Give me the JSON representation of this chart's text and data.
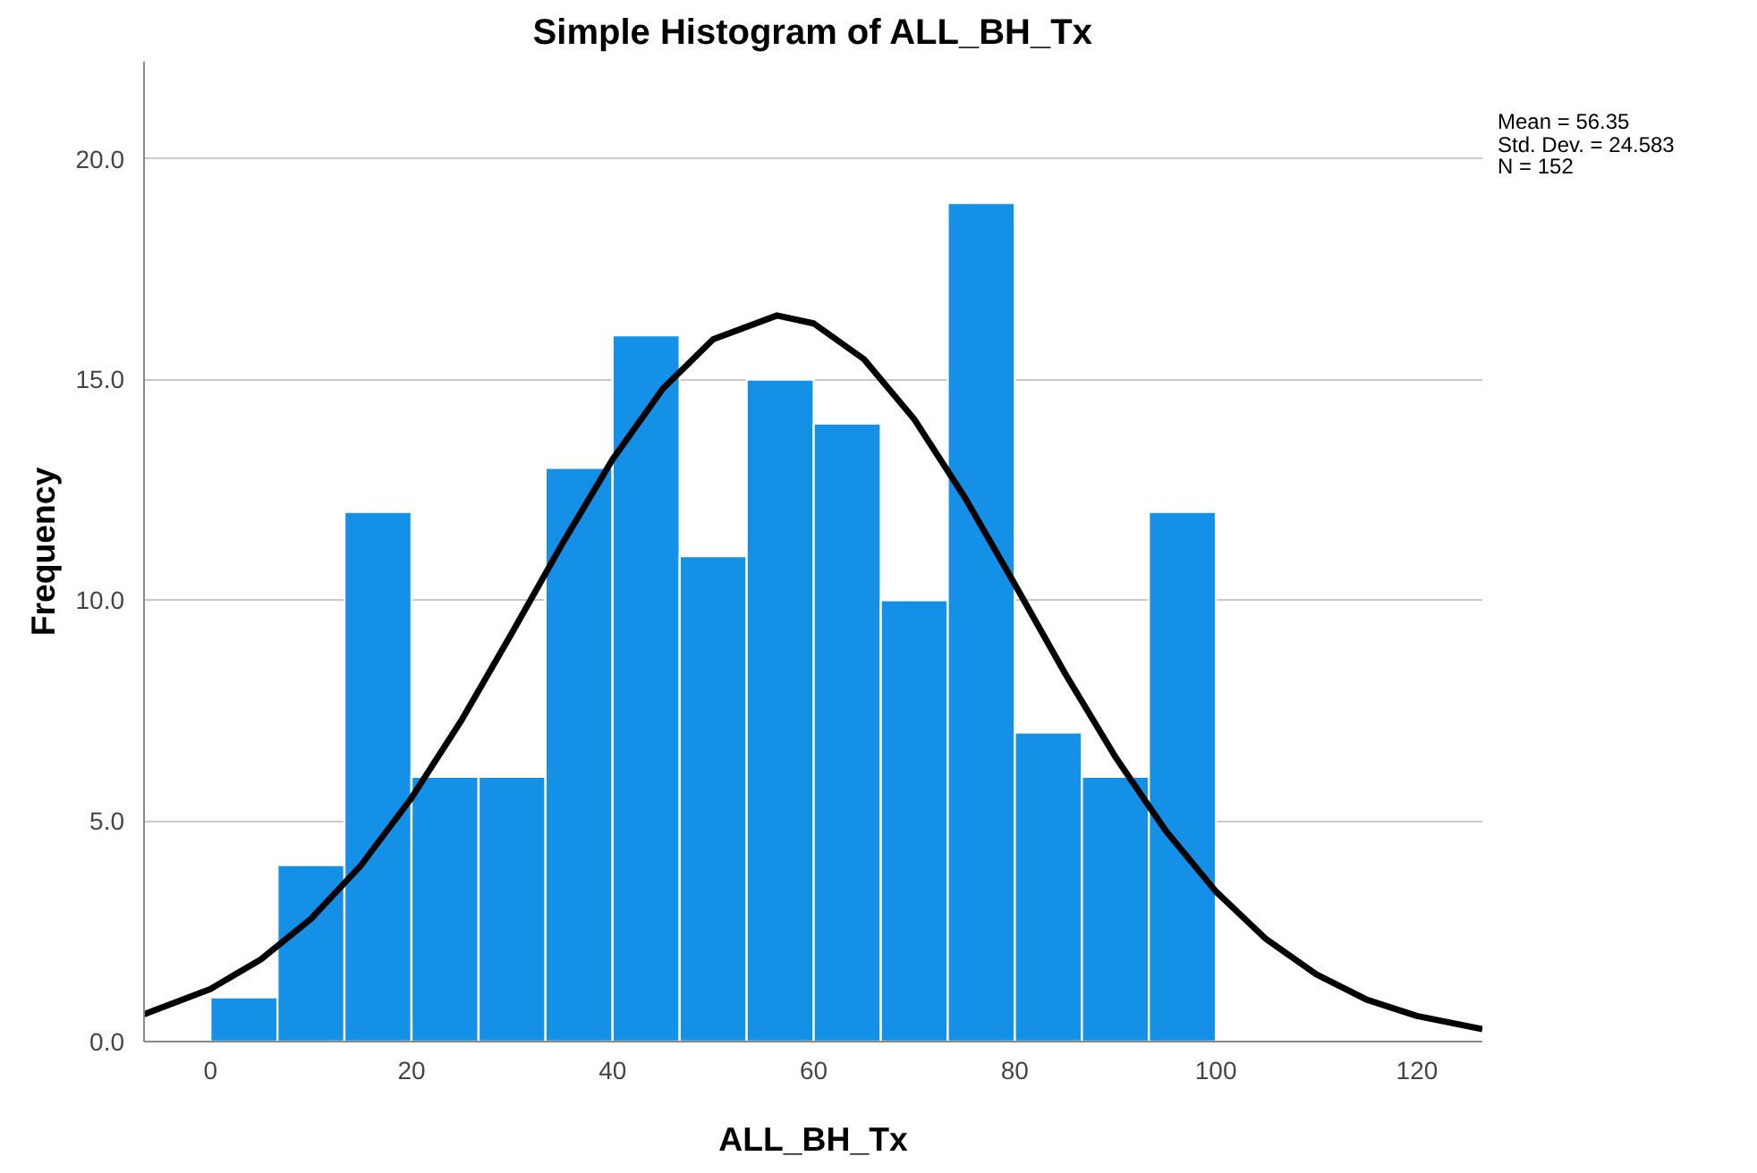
{
  "chart_data": {
    "type": "histogram",
    "title": "Simple Histogram of ALL_BH_Tx",
    "xlabel": "ALL_BH_Tx",
    "ylabel": "Frequency",
    "bins": [
      0,
      6.67,
      13.33,
      20,
      26.67,
      33.33,
      40,
      46.67,
      53.33,
      60,
      66.67,
      73.33,
      80,
      86.67,
      93.33,
      100
    ],
    "values": [
      1,
      4,
      12,
      6,
      6,
      13,
      16,
      11,
      15,
      14,
      10,
      19,
      7,
      6,
      12
    ],
    "color": "#1490e6",
    "series": [
      {
        "type": "line",
        "color": "#000000",
        "x": [
          -6.6,
          0,
          5,
          10,
          15,
          20,
          25,
          30,
          35,
          40,
          45,
          50,
          56.35,
          60,
          65,
          70,
          75,
          80,
          85,
          90,
          95,
          100,
          105,
          110,
          115,
          120,
          126.5
        ],
        "values": [
          0.62,
          1.19,
          1.86,
          2.78,
          4.0,
          5.52,
          7.29,
          9.26,
          11.28,
          13.19,
          14.79,
          15.91,
          16.45,
          16.27,
          15.46,
          14.1,
          12.34,
          10.36,
          8.34,
          6.45,
          4.78,
          3.4,
          2.32,
          1.52,
          0.95,
          0.58,
          0.28
        ]
      }
    ],
    "annotations": [
      "Mean = 56.35",
      "Std. Dev. = 24.583",
      "N = 152"
    ],
    "xlim": [
      -6.6,
      126.5
    ],
    "xticks": [
      0,
      20,
      40,
      60,
      80,
      100,
      120
    ],
    "ylim": [
      0,
      22.2
    ],
    "yticks": [
      {
        "value": 0,
        "label": "0.0"
      },
      {
        "value": 5,
        "label": "5.0"
      },
      {
        "value": 10,
        "label": "10.0"
      },
      {
        "value": 15,
        "label": "15.0"
      },
      {
        "value": 20,
        "label": "20.0"
      }
    ],
    "grid": "y"
  }
}
